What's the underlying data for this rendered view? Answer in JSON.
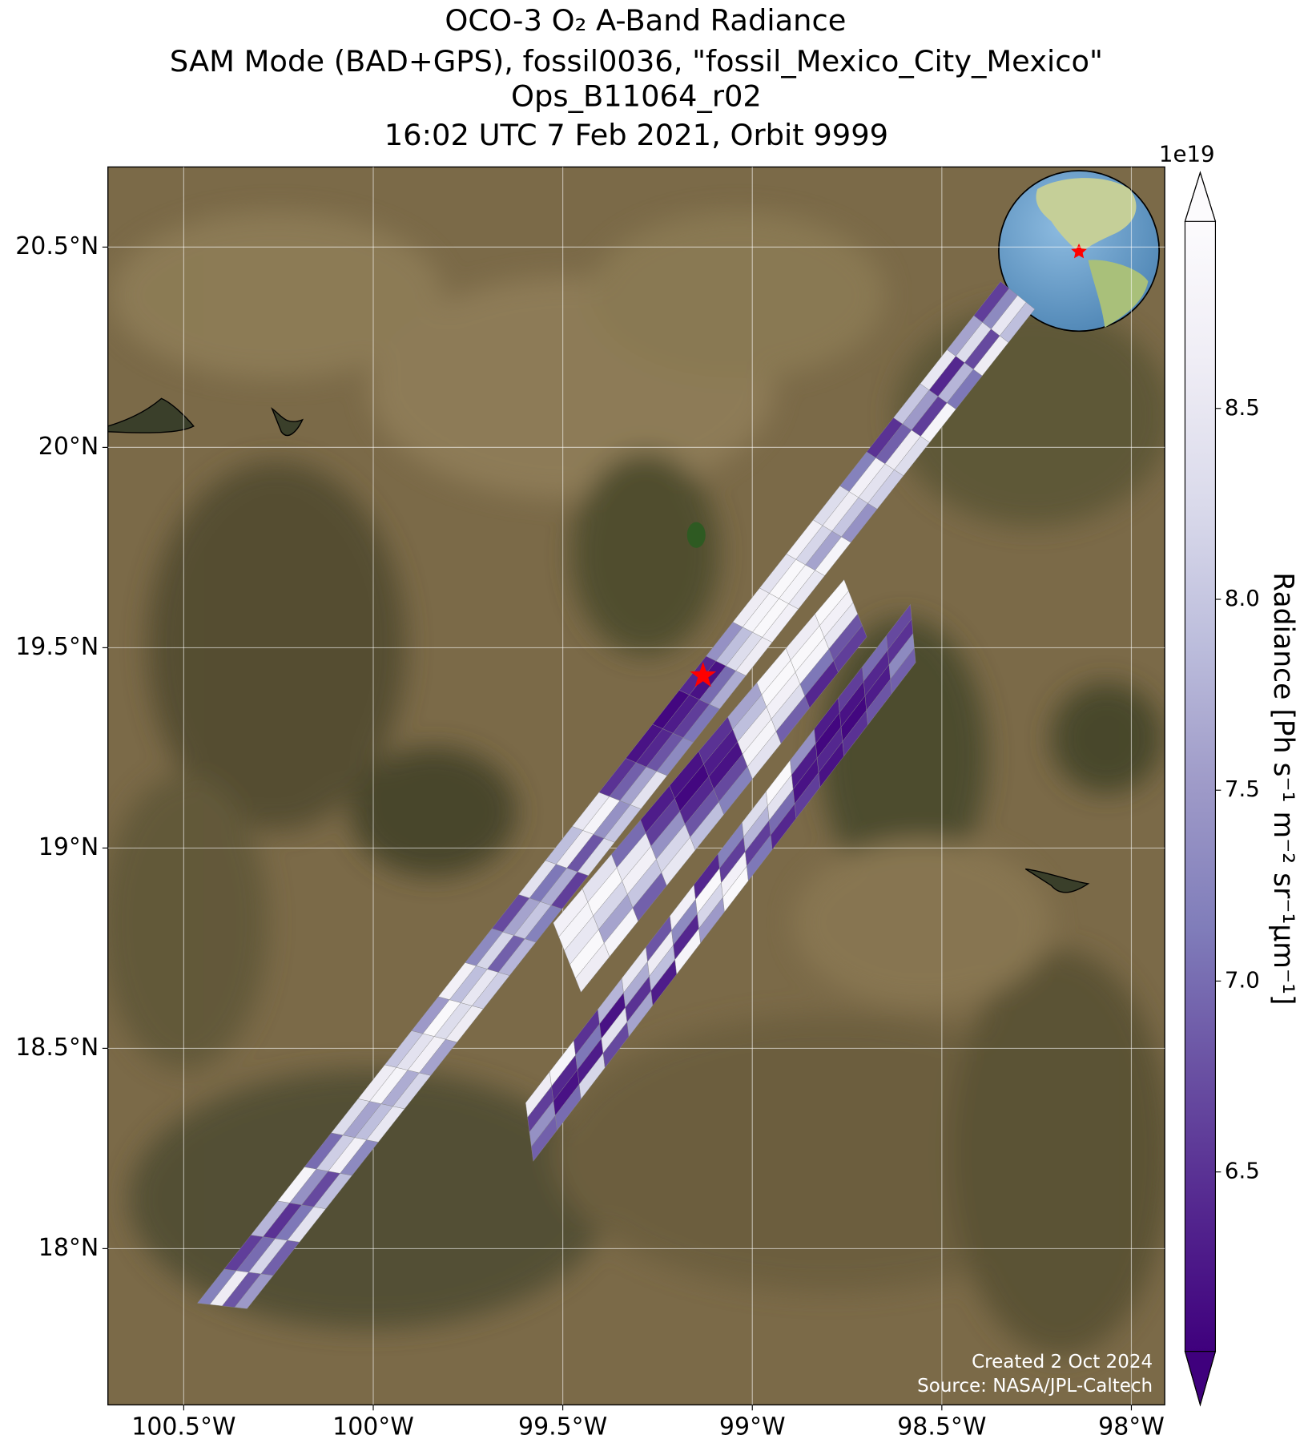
{
  "chart_data": {
    "type": "map_swath",
    "title": [
      "OCO-3 O₂ A-Band Radiance",
      "SAM Mode (BAD+GPS), fossil0036, \"fossil_Mexico_City_Mexico\"",
      "Ops_B11064_r02",
      "16:02 UTC 7 Feb 2021, Orbit 9999"
    ],
    "xlim": [
      -100.7,
      -97.912
    ],
    "ylim": [
      17.61,
      20.7
    ],
    "xticks": [
      {
        "value": -100.5,
        "label": "100.5°W"
      },
      {
        "value": -100,
        "label": "100°W"
      },
      {
        "value": -99.5,
        "label": "99.5°W"
      },
      {
        "value": -99,
        "label": "99°W"
      },
      {
        "value": -98.5,
        "label": "98.5°W"
      },
      {
        "value": -98,
        "label": "98°W"
      }
    ],
    "yticks": [
      {
        "value": 18,
        "label": "18°N"
      },
      {
        "value": 18.5,
        "label": "18.5°N"
      },
      {
        "value": 19,
        "label": "19°N"
      },
      {
        "value": 19.5,
        "label": "19.5°N"
      },
      {
        "value": 20,
        "label": "20°N"
      },
      {
        "value": 20.5,
        "label": "20.5°N"
      }
    ],
    "grid": true,
    "colormap": [
      "#3f007d",
      "#54278f",
      "#6a51a3",
      "#807dba",
      "#9e9ac8",
      "#bcbddc",
      "#dadaeb",
      "#efedf5",
      "#fcfbfd"
    ],
    "clim": [
      6.03,
      8.99
    ],
    "colorbar_ticks": [
      6.5,
      {
        "value": 7,
        "label": "7.0"
      },
      7.5,
      {
        "value": 8,
        "label": "8.0"
      },
      8.5
    ],
    "colorbar_offset": "1e19",
    "colorbar_label": "Radiance [Ph s⁻¹ m⁻² sr⁻¹μm⁻¹]",
    "marker": {
      "lon": -99.13,
      "lat": 19.43,
      "color": "#ff0000"
    },
    "annotations": [
      "Created 2 Oct 2024",
      "Source: NASA/JPL-Caltech"
    ],
    "swaths": [
      {
        "corners": [
          [
            -100.464,
            17.864
          ],
          [
            -100.333,
            17.85
          ],
          [
            -98.255,
            20.345
          ],
          [
            -98.345,
            20.414
          ]
        ],
        "values": [
          [
            7.2,
            8.6,
            6.8,
            7.5
          ],
          [
            6.6,
            7.0,
            8.2,
            6.9
          ],
          [
            7.8,
            6.5,
            7.1,
            8.4
          ],
          [
            8.8,
            7.4,
            6.7,
            7.9
          ],
          [
            7.0,
            8.1,
            8.7,
            7.3
          ],
          [
            8.3,
            7.6,
            7.9,
            8.5
          ],
          [
            8.6,
            8.8,
            7.7,
            8.2
          ],
          [
            8.0,
            8.4,
            8.7,
            7.6
          ],
          [
            7.5,
            8.9,
            8.3,
            8.6
          ],
          [
            8.7,
            7.9,
            8.5,
            8.1
          ],
          [
            7.3,
            8.2,
            6.9,
            7.8
          ],
          [
            6.7,
            7.6,
            8.0,
            7.2
          ],
          [
            8.4,
            7.1,
            7.7,
            6.6
          ],
          [
            7.9,
            8.6,
            6.8,
            8.3
          ],
          [
            8.5,
            8.8,
            7.4,
            8.0
          ],
          [
            6.5,
            6.9,
            7.6,
            8.4
          ],
          [
            6.2,
            6.4,
            6.8,
            7.3
          ],
          [
            6.1,
            6.3,
            6.6,
            7.1
          ],
          [
            6.4,
            6.2,
            7.0,
            7.7
          ],
          [
            7.4,
            7.9,
            8.3,
            8.6
          ],
          [
            8.6,
            8.8,
            8.9,
            8.7
          ],
          [
            8.4,
            8.9,
            8.8,
            8.5
          ],
          [
            8.7,
            8.2,
            7.6,
            8.8
          ],
          [
            8.3,
            8.6,
            8.0,
            7.4
          ],
          [
            7.2,
            8.7,
            8.4,
            8.1
          ],
          [
            6.5,
            6.9,
            8.6,
            8.3
          ],
          [
            8.0,
            7.5,
            6.6,
            8.8
          ],
          [
            8.5,
            6.4,
            7.8,
            7.1
          ],
          [
            7.6,
            8.3,
            6.7,
            8.6
          ],
          [
            6.6,
            7.3,
            8.5,
            7.9
          ]
        ]
      },
      {
        "corners": [
          [
            -99.525,
            18.813
          ],
          [
            -99.452,
            18.64
          ],
          [
            -98.698,
            19.527
          ],
          [
            -98.758,
            19.67
          ]
        ],
        "values": [
          [
            8.7,
            8.8,
            8.5,
            8.9,
            8.6
          ],
          [
            8.4,
            8.9,
            8.2,
            7.6,
            8.8
          ],
          [
            7.0,
            8.5,
            8.7,
            8.0,
            6.9
          ],
          [
            6.3,
            6.6,
            7.4,
            8.2,
            8.5
          ],
          [
            6.2,
            6.1,
            6.4,
            6.8,
            7.9
          ],
          [
            6.5,
            6.3,
            6.2,
            6.7,
            7.2
          ],
          [
            7.6,
            7.9,
            8.6,
            8.8,
            8.4
          ],
          [
            8.8,
            8.9,
            8.7,
            8.3,
            6.9
          ],
          [
            8.6,
            8.9,
            8.8,
            7.1,
            6.4
          ],
          [
            8.9,
            8.7,
            8.5,
            6.8,
            6.6
          ]
        ]
      },
      {
        "corners": [
          [
            -99.598,
            18.364
          ],
          [
            -99.578,
            18.218
          ],
          [
            -98.569,
            19.463
          ],
          [
            -98.583,
            19.608
          ]
        ],
        "values": [
          [
            8.6,
            6.6,
            7.4,
            6.9
          ],
          [
            8.8,
            6.4,
            6.2,
            7.0
          ],
          [
            6.5,
            7.1,
            6.3,
            8.2
          ],
          [
            7.8,
            6.2,
            8.4,
            6.7
          ],
          [
            8.5,
            7.7,
            6.5,
            7.6
          ],
          [
            6.8,
            8.6,
            7.9,
            6.3
          ],
          [
            8.7,
            7.3,
            6.4,
            8.8
          ],
          [
            6.4,
            8.9,
            8.2,
            7.5
          ],
          [
            7.2,
            6.6,
            8.7,
            8.9
          ],
          [
            8.3,
            7.8,
            6.6,
            7.1
          ],
          [
            8.9,
            8.4,
            7.0,
            6.4
          ],
          [
            7.4,
            6.3,
            6.2,
            6.6
          ],
          [
            6.3,
            6.1,
            6.4,
            6.2
          ],
          [
            6.6,
            6.2,
            6.1,
            6.5
          ],
          [
            7.0,
            6.4,
            6.3,
            6.8
          ],
          [
            6.7,
            6.5,
            7.3,
            6.9
          ]
        ]
      }
    ]
  }
}
